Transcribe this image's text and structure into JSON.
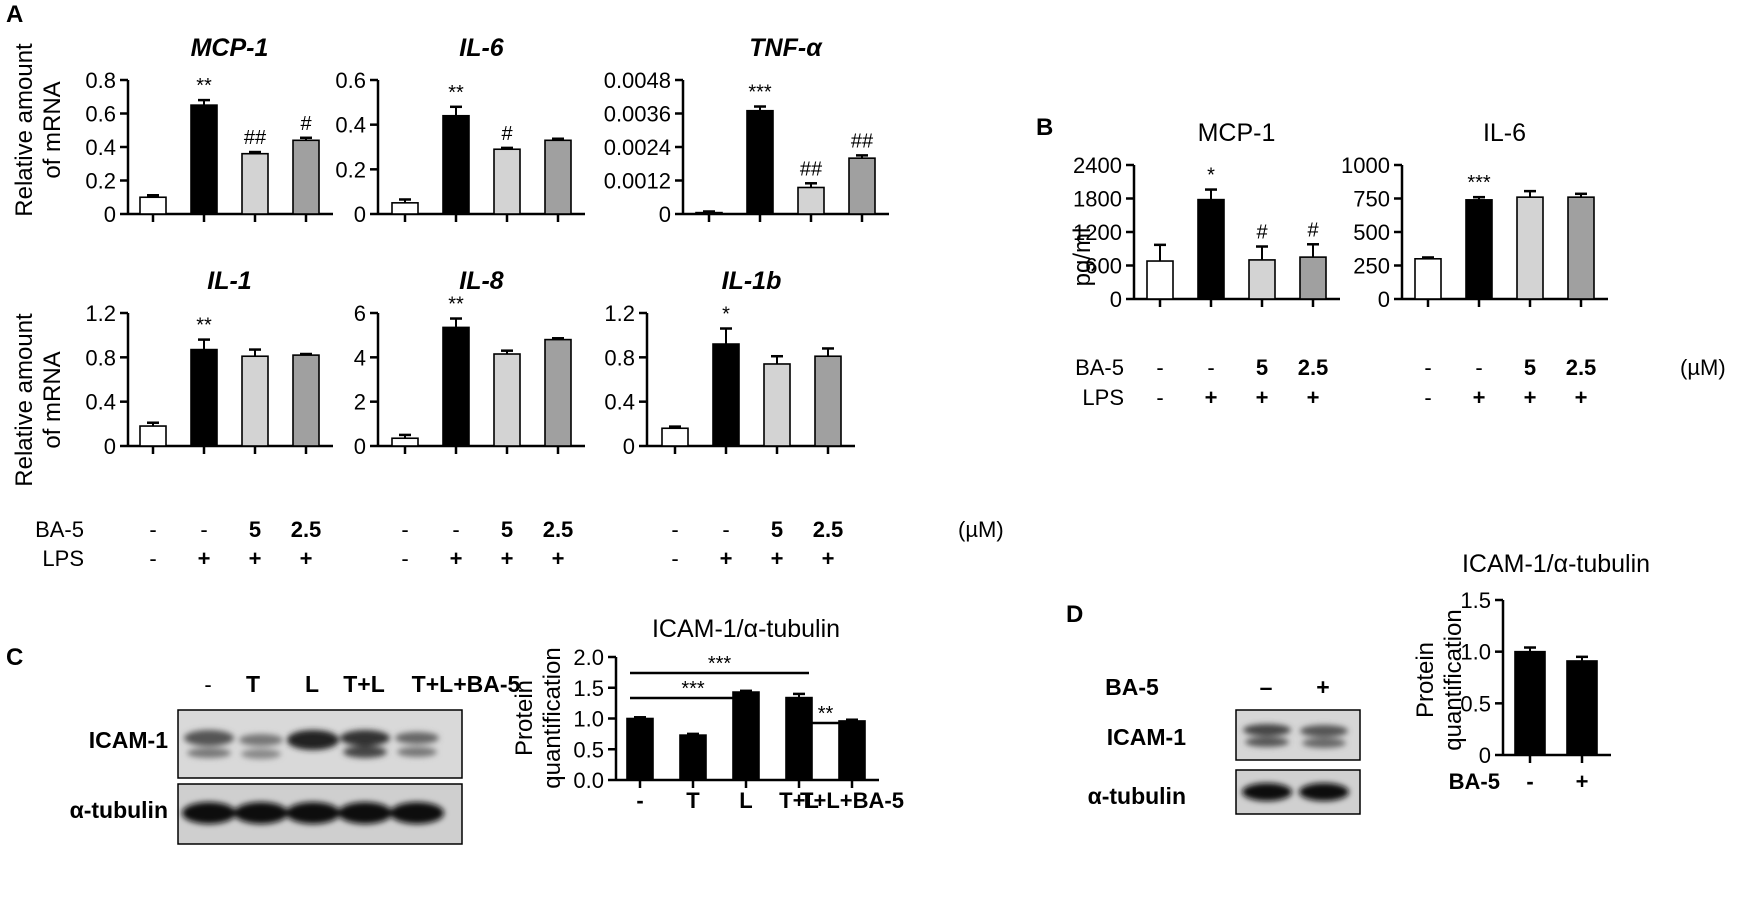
{
  "panels": {
    "A": "A",
    "B": "B",
    "C": "C",
    "D": "D"
  },
  "panel_a": {
    "ylabel_line1": "Relative amount",
    "ylabel_line2": "of mRNA",
    "row_labels": {
      "ba5": "BA-5",
      "lps": "LPS"
    },
    "unit": "(µM)"
  },
  "panel_b": {
    "ylabel": "pg/ml",
    "row_labels": {
      "ba5": "BA-5",
      "lps": "LPS"
    },
    "unit": "(µM)"
  },
  "treatments_a": {
    "ba5": [
      "-",
      "-",
      "5",
      "2.5"
    ],
    "lps": [
      "-",
      "+",
      "+",
      "+"
    ]
  },
  "blot_c": {
    "lane_labels": [
      "-",
      "T",
      "L",
      "T+L",
      "T+L+BA-5"
    ],
    "rows": [
      "ICAM-1",
      "α-tubulin"
    ]
  },
  "blot_d": {
    "ba5_label": "BA-5",
    "lane_labels": [
      "–",
      "+"
    ],
    "rows": [
      "ICAM-1",
      "α-tubulin"
    ]
  },
  "colors": {
    "g1": "#ffffff",
    "g2": "#000000",
    "g3": "#d3d3d3",
    "g4": "#a0a0a0"
  },
  "chart_data": [
    {
      "id": "A1",
      "type": "bar",
      "title": "MCP-1",
      "title_italic": true,
      "ylabel": "Relative amount of mRNA",
      "values": [
        0.1,
        0.65,
        0.36,
        0.44
      ],
      "errors": [
        0.012,
        0.03,
        0.01,
        0.015
      ],
      "significance": [
        "",
        "**",
        "##",
        "#"
      ],
      "ylim": [
        0,
        0.8
      ],
      "yticks": [
        0,
        0.2,
        0.4,
        0.6,
        0.8
      ],
      "ytick_labels": [
        "0",
        "0.2",
        "0.4",
        "0.6",
        "0.8"
      ]
    },
    {
      "id": "A2",
      "type": "bar",
      "title": "IL-6",
      "title_italic": true,
      "values": [
        0.05,
        0.44,
        0.29,
        0.33
      ],
      "errors": [
        0.015,
        0.04,
        0.006,
        0.007
      ],
      "significance": [
        "",
        "**",
        "#",
        ""
      ],
      "ylim": [
        0,
        0.6
      ],
      "yticks": [
        0,
        0.2,
        0.4,
        0.6
      ],
      "ytick_labels": [
        "0",
        "0.2",
        "0.4",
        "0.6"
      ]
    },
    {
      "id": "A3",
      "type": "bar",
      "title": "TNF-α",
      "title_italic": true,
      "values": [
        5e-05,
        0.0037,
        0.00095,
        0.002
      ],
      "errors": [
        4e-05,
        0.00015,
        0.00015,
        0.0001
      ],
      "significance": [
        "",
        "***",
        "##",
        "##"
      ],
      "ylim": [
        0,
        0.0048
      ],
      "yticks": [
        0,
        0.0012,
        0.0024,
        0.0036,
        0.0048
      ],
      "ytick_labels": [
        "0",
        "0.0012",
        "0.0024",
        "0.0036",
        "0.0048"
      ]
    },
    {
      "id": "A4",
      "type": "bar",
      "title": "IL-1",
      "title_italic": true,
      "ylabel": "Relative amount of mRNA",
      "values": [
        0.18,
        0.87,
        0.81,
        0.82
      ],
      "errors": [
        0.03,
        0.09,
        0.06,
        0.01
      ],
      "significance": [
        "",
        "**",
        "",
        ""
      ],
      "ylim": [
        0,
        1.2
      ],
      "yticks": [
        0,
        0.4,
        0.8,
        1.2
      ],
      "ytick_labels": [
        "0",
        "0.4",
        "0.8",
        "1.2"
      ]
    },
    {
      "id": "A5",
      "type": "bar",
      "title": "IL-8",
      "title_italic": true,
      "values": [
        0.35,
        5.35,
        4.15,
        4.8
      ],
      "errors": [
        0.15,
        0.4,
        0.15,
        0.06
      ],
      "significance": [
        "",
        "**",
        "",
        ""
      ],
      "ylim": [
        0,
        6
      ],
      "yticks": [
        0,
        2,
        4,
        6
      ],
      "ytick_labels": [
        "0",
        "2",
        "4",
        "6"
      ]
    },
    {
      "id": "A6",
      "type": "bar",
      "title": "IL-1b",
      "title_italic": true,
      "values": [
        0.16,
        0.92,
        0.74,
        0.81
      ],
      "errors": [
        0.015,
        0.14,
        0.07,
        0.07
      ],
      "significance": [
        "",
        "*",
        "",
        ""
      ],
      "ylim": [
        0,
        1.2
      ],
      "yticks": [
        0,
        0.4,
        0.8,
        1.2
      ],
      "ytick_labels": [
        "0",
        "0.4",
        "0.8",
        "1.2"
      ]
    },
    {
      "id": "B1",
      "type": "bar",
      "title": "MCP-1",
      "title_italic": false,
      "ylabel": "pg/ml",
      "values": [
        680,
        1780,
        700,
        750
      ],
      "errors": [
        290,
        180,
        240,
        230
      ],
      "significance": [
        "",
        "*",
        "#",
        "#"
      ],
      "ylim": [
        0,
        2400
      ],
      "yticks": [
        0,
        600,
        1200,
        1800,
        2400
      ],
      "ytick_labels": [
        "0",
        "600",
        "1200",
        "1800",
        "2400"
      ]
    },
    {
      "id": "B2",
      "type": "bar",
      "title": "IL-6",
      "title_italic": false,
      "values": [
        300,
        740,
        760,
        760
      ],
      "errors": [
        10,
        20,
        45,
        25
      ],
      "significance": [
        "",
        "***",
        "",
        ""
      ],
      "ylim": [
        0,
        1000
      ],
      "yticks": [
        0,
        250,
        500,
        750,
        1000
      ],
      "ytick_labels": [
        "0",
        "250",
        "500",
        "750",
        "1000"
      ]
    },
    {
      "id": "C1",
      "type": "bar",
      "title": "ICAM-1/α-tubulin",
      "ylabel": "Protein quantification",
      "categories": [
        "-",
        "T",
        "L",
        "T+L",
        "T+L+BA-5"
      ],
      "values": [
        1.0,
        0.73,
        1.43,
        1.34,
        0.96
      ],
      "errors": [
        0.02,
        0.02,
        0.02,
        0.06,
        0.02
      ],
      "ylim": [
        0,
        2.0
      ],
      "yticks": [
        0,
        0.5,
        1.0,
        1.5,
        2.0
      ],
      "ytick_labels": [
        "0.0",
        "0.5",
        "1.0",
        "1.5",
        "2.0"
      ],
      "comparisons": [
        {
          "from": 0,
          "to": 3,
          "label": "***"
        },
        {
          "from": 0,
          "to": 2,
          "label": "***"
        },
        {
          "from": 3,
          "to": 4,
          "label": "**"
        }
      ]
    },
    {
      "id": "D1",
      "type": "bar",
      "title": "ICAM-1/α-tubulin",
      "ylabel": "Protein quantification",
      "xlabel": "BA-5",
      "categories": [
        "-",
        "+"
      ],
      "values": [
        1.0,
        0.91
      ],
      "errors": [
        0.04,
        0.04
      ],
      "ylim": [
        0,
        1.5
      ],
      "yticks": [
        0,
        0.5,
        1.0,
        1.5
      ],
      "ytick_labels": [
        "0",
        "0.5",
        "1.0",
        "1.5"
      ]
    }
  ]
}
